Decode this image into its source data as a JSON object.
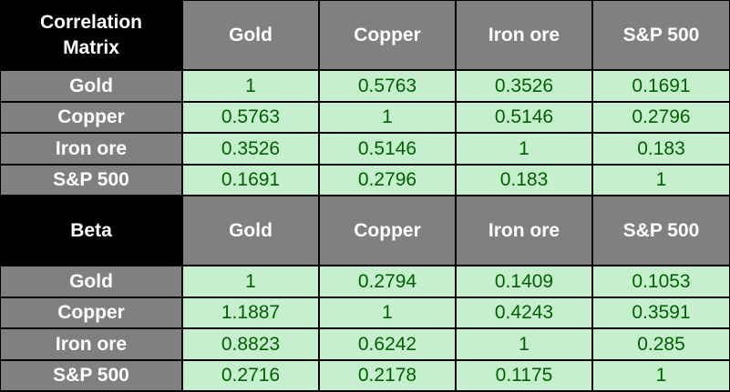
{
  "tables": [
    {
      "corner": "Correlation Matrix",
      "columns": [
        "Gold",
        "Copper",
        "Iron ore",
        "S&P 500"
      ],
      "rows": [
        {
          "label": "Gold",
          "values": [
            1,
            0.5763,
            0.3526,
            0.1691
          ]
        },
        {
          "label": "Copper",
          "values": [
            0.5763,
            1,
            0.5146,
            0.2796
          ]
        },
        {
          "label": "Iron ore",
          "values": [
            0.3526,
            0.5146,
            1,
            0.183
          ]
        },
        {
          "label": "S&P 500",
          "values": [
            0.1691,
            0.2796,
            0.183,
            1
          ]
        }
      ]
    },
    {
      "corner": "Beta",
      "columns": [
        "Gold",
        "Copper",
        "Iron ore",
        "S&P 500"
      ],
      "rows": [
        {
          "label": "Gold",
          "values": [
            1,
            0.2794,
            0.1409,
            0.1053
          ]
        },
        {
          "label": "Copper",
          "values": [
            1.1887,
            1,
            0.4243,
            0.3591
          ]
        },
        {
          "label": "Iron ore",
          "values": [
            0.8823,
            0.6242,
            1,
            0.285
          ]
        },
        {
          "label": "S&P 500",
          "values": [
            0.2716,
            0.2178,
            0.1175,
            1
          ]
        }
      ]
    }
  ]
}
